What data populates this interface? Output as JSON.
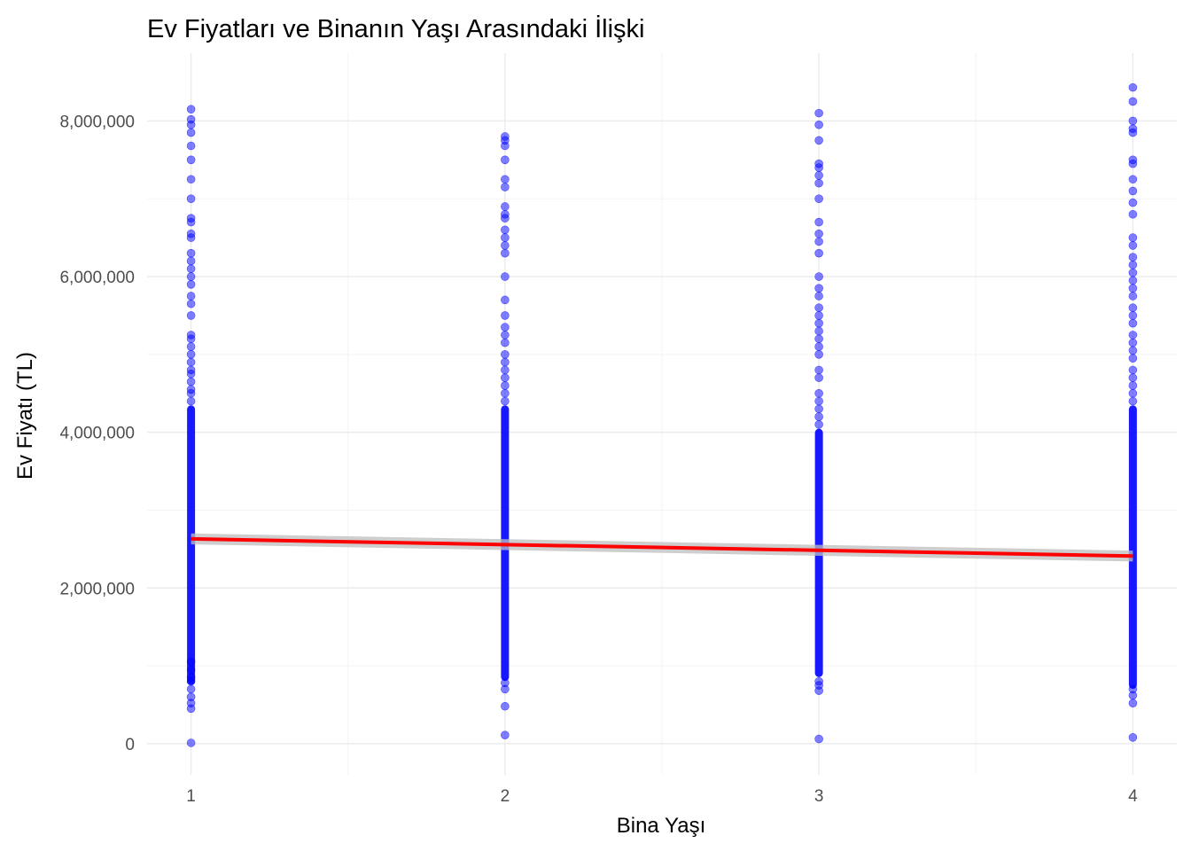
{
  "chart_data": {
    "type": "scatter",
    "title": "Ev Fiyatları ve Binanın Yaşı Arasındaki İlişki",
    "xlabel": "Bina Yaşı",
    "ylabel": "Ev Fiyatı (TL)",
    "x_ticks": [
      1,
      2,
      3,
      4
    ],
    "x_tick_labels": [
      "1",
      "2",
      "3",
      "4"
    ],
    "y_ticks": [
      0,
      2000000,
      4000000,
      6000000,
      8000000
    ],
    "y_tick_labels": [
      "0",
      "2,000,000",
      "4,000,000",
      "6,000,000",
      "8,000,000"
    ],
    "xlim": [
      0.86,
      4.14
    ],
    "ylim": [
      -400000,
      8870000
    ],
    "grid": true,
    "point_color": "#0000ff",
    "point_opacity": 0.5,
    "trend_color": "#ff0000",
    "confidence_band_color": "#bdbdbd",
    "trend_line": {
      "x": [
        1,
        4
      ],
      "y": [
        2630000,
        2410000
      ]
    },
    "confidence_band": {
      "x": [
        1,
        4
      ],
      "lower": [
        2560000,
        2340000
      ],
      "upper": [
        2700000,
        2480000
      ]
    },
    "series": [
      {
        "x": 1,
        "dense_range": [
          800000,
          4300000
        ],
        "values": [
          10000,
          450000,
          520000,
          600000,
          700000,
          800000,
          850000,
          950000,
          1050000,
          4400000,
          4500000,
          4550000,
          4650000,
          4750000,
          4800000,
          4900000,
          5000000,
          5100000,
          5200000,
          5250000,
          5500000,
          5650000,
          5750000,
          5900000,
          6000000,
          6100000,
          6200000,
          6300000,
          6500000,
          6550000,
          6700000,
          6750000,
          7000000,
          7250000,
          7500000,
          7680000,
          7850000,
          7950000,
          8020000,
          8150000
        ]
      },
      {
        "x": 2,
        "dense_range": [
          850000,
          4300000
        ],
        "values": [
          110000,
          480000,
          700000,
          780000,
          4400000,
          4500000,
          4600000,
          4700000,
          4800000,
          4900000,
          5000000,
          5150000,
          5250000,
          5350000,
          5500000,
          5700000,
          6000000,
          6300000,
          6400000,
          6500000,
          6600000,
          6750000,
          6800000,
          6900000,
          7150000,
          7250000,
          7500000,
          7680000,
          7750000,
          7800000
        ]
      },
      {
        "x": 3,
        "dense_range": [
          900000,
          4000000
        ],
        "values": [
          60000,
          680000,
          750000,
          800000,
          4100000,
          4200000,
          4300000,
          4400000,
          4500000,
          4700000,
          4800000,
          5000000,
          5100000,
          5200000,
          5300000,
          5400000,
          5500000,
          5600000,
          5750000,
          5850000,
          6000000,
          6300000,
          6450000,
          6550000,
          6700000,
          7000000,
          7200000,
          7300000,
          7400000,
          7450000,
          7750000,
          7950000,
          8100000
        ]
      },
      {
        "x": 4,
        "dense_range": [
          750000,
          4300000
        ],
        "values": [
          80000,
          520000,
          620000,
          700000,
          4400000,
          4500000,
          4600000,
          4700000,
          4800000,
          4950000,
          5050000,
          5150000,
          5250000,
          5400000,
          5500000,
          5600000,
          5750000,
          5850000,
          5950000,
          6050000,
          6150000,
          6250000,
          6400000,
          6500000,
          6800000,
          6950000,
          7100000,
          7250000,
          7450000,
          7500000,
          7850000,
          7900000,
          8000000,
          8250000,
          8430000
        ]
      }
    ]
  }
}
